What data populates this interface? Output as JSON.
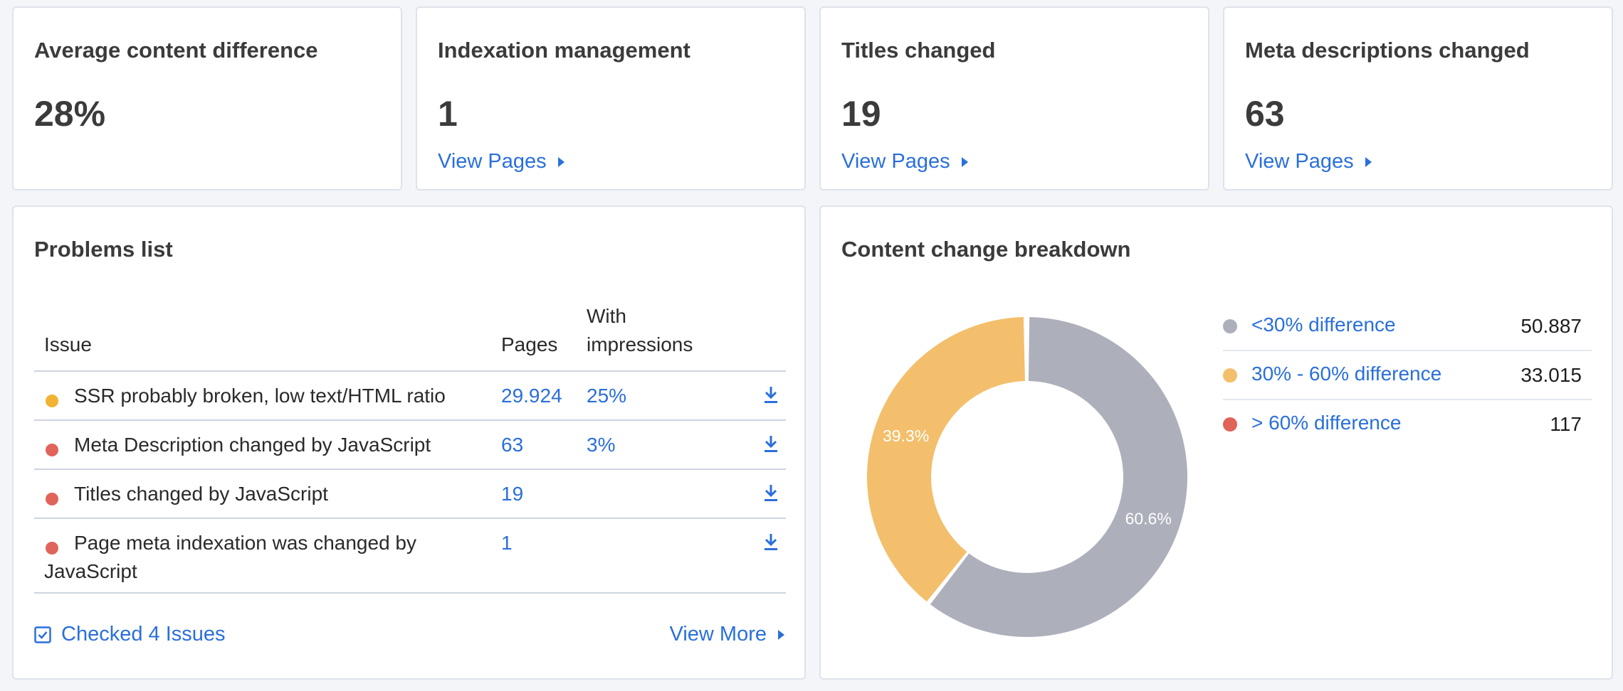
{
  "kpis": [
    {
      "title": "Average content difference",
      "value": "28%",
      "link": ""
    },
    {
      "title": "Indexation management",
      "value": "1",
      "link": "View Pages"
    },
    {
      "title": "Titles changed",
      "value": "19",
      "link": "View Pages"
    },
    {
      "title": "Meta descriptions changed",
      "value": "63",
      "link": "View Pages"
    }
  ],
  "problems": {
    "title": "Problems list",
    "headers": {
      "issue": "Issue",
      "pages": "Pages",
      "impressions": "With impressions"
    },
    "rows": [
      {
        "issue": "SSR probably broken, low text/HTML ratio",
        "pages": "29.924",
        "impressions": "25%",
        "severity": "warning"
      },
      {
        "issue": "Meta Description changed by JavaScript",
        "pages": "63",
        "impressions": "3%",
        "severity": "error"
      },
      {
        "issue": "Titles changed by JavaScript",
        "pages": "19",
        "impressions": "",
        "severity": "error"
      },
      {
        "issue": "Page meta indexation was changed by JavaScript",
        "pages": "1",
        "impressions": "",
        "severity": "error"
      }
    ],
    "checked_label": "Checked 4 Issues",
    "view_more_label": "View More"
  },
  "breakdown": {
    "title": "Content change breakdown",
    "legend": [
      {
        "label": "<30% difference",
        "value": "50.887"
      },
      {
        "label": "30% - 60% difference",
        "value": "33.015"
      },
      {
        "label": "> 60% difference",
        "value": "117"
      }
    ]
  },
  "colors": {
    "accent": "#2a6fdb",
    "warning": "#f2b233",
    "error": "#e0645a",
    "slice_low": "#adb0bb",
    "slice_mid": "#f3bf6c",
    "slice_high": "#e0645a"
  },
  "chart_data": {
    "type": "pie",
    "title": "Content change breakdown",
    "categories": [
      "<30% difference",
      "30% - 60% difference",
      "> 60% difference"
    ],
    "values": [
      50887,
      33015,
      117
    ],
    "data_labels": [
      "60.6%",
      "39.3%",
      ""
    ],
    "donut": true
  }
}
